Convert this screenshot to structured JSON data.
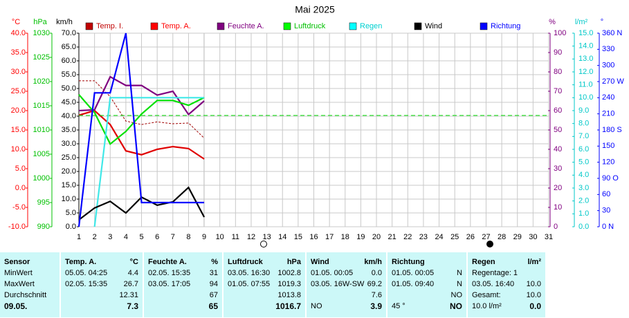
{
  "chart_data": {
    "type": "line",
    "title": "Mai 2025",
    "xlim": [
      1,
      31
    ],
    "xticks": [
      1,
      2,
      3,
      4,
      5,
      6,
      7,
      8,
      9,
      10,
      11,
      12,
      13,
      14,
      15,
      16,
      17,
      18,
      19,
      20,
      21,
      22,
      23,
      24,
      25,
      26,
      27,
      28,
      29,
      30,
      31
    ],
    "x": [
      1,
      2,
      3,
      4,
      5,
      6,
      7,
      8,
      9
    ],
    "grid": true,
    "axes": [
      {
        "label": "°C",
        "color": "#ff0000",
        "lim": [
          -10,
          40
        ],
        "ticks": [
          {
            "value": 40,
            "label": "40.0"
          },
          {
            "value": 35,
            "label": "35.0"
          },
          {
            "value": 30,
            "label": "30.0"
          },
          {
            "value": 25,
            "label": "25.0"
          },
          {
            "value": 20,
            "label": "20.0"
          },
          {
            "value": 15,
            "label": "15.0"
          },
          {
            "value": 10,
            "label": "10.0"
          },
          {
            "value": 5,
            "label": "5.0"
          },
          {
            "value": 0,
            "label": "0.0"
          },
          {
            "value": -5,
            "label": "-5.0"
          },
          {
            "value": -10,
            "label": "-10.0"
          }
        ]
      },
      {
        "label": "hPa",
        "color": "#00c000",
        "lim": [
          990,
          1030
        ],
        "ticks": [
          1030,
          1025,
          1020,
          1015,
          1010,
          1005,
          1000,
          995,
          990
        ]
      },
      {
        "label": "km/h",
        "color": "#000000",
        "lim": [
          0,
          70
        ],
        "ticks": [
          {
            "value": 70,
            "label": "70.0"
          },
          {
            "value": 65,
            "label": "65.0"
          },
          {
            "value": 60,
            "label": "60.0"
          },
          {
            "value": 55,
            "label": "55.0"
          },
          {
            "value": 50,
            "label": "50.0"
          },
          {
            "value": 45,
            "label": "45.0"
          },
          {
            "value": 40,
            "label": "40.0"
          },
          {
            "value": 35,
            "label": "35.0"
          },
          {
            "value": 30,
            "label": "30.0"
          },
          {
            "value": 25,
            "label": "25.0"
          },
          {
            "value": 20,
            "label": "20.0"
          },
          {
            "value": 15,
            "label": "15.0"
          },
          {
            "value": 10,
            "label": "10.0"
          },
          {
            "value": 5,
            "label": "5.0"
          },
          {
            "value": 0,
            "label": "0.0"
          }
        ]
      },
      {
        "label": "%",
        "color": "#800080",
        "lim": [
          0,
          100
        ],
        "ticks": [
          100,
          90,
          80,
          70,
          60,
          50,
          40,
          30,
          20,
          10,
          0
        ]
      },
      {
        "label": "l/m²",
        "color": "#00c8c8",
        "lim": [
          0,
          15
        ],
        "ticks": [
          {
            "value": 15,
            "label": "15.0"
          },
          {
            "value": 14,
            "label": "14.0"
          },
          {
            "value": 13,
            "label": "13.0"
          },
          {
            "value": 12,
            "label": "12.0"
          },
          {
            "value": 11,
            "label": "11.0"
          },
          {
            "value": 10,
            "label": "10.0"
          },
          {
            "value": 9,
            "label": "9.0"
          },
          {
            "value": 8,
            "label": "8.0"
          },
          {
            "value": 7,
            "label": "7.0"
          },
          {
            "value": 6,
            "label": "6.0"
          },
          {
            "value": 5,
            "label": "5.0"
          },
          {
            "value": 4,
            "label": "4.0"
          },
          {
            "value": 3,
            "label": "3.0"
          },
          {
            "value": 2,
            "label": "2.0"
          },
          {
            "value": 1,
            "label": "1.0"
          },
          {
            "value": 0,
            "label": "0.0"
          }
        ]
      },
      {
        "label": "°",
        "color": "#0000ff",
        "lim": [
          0,
          360
        ],
        "ticks": [
          {
            "value": 360,
            "label": "360 N"
          },
          330,
          300,
          {
            "value": 270,
            "label": "270 W"
          },
          240,
          210,
          {
            "value": 180,
            "label": "180 S"
          },
          150,
          120,
          {
            "value": 90,
            "label": "90 O"
          },
          60,
          30,
          {
            "value": 0,
            "label": "0 N"
          }
        ]
      }
    ],
    "series": [
      {
        "name": "Temp. I.",
        "color": "#a00000",
        "legend_color": "#c00000",
        "axis": 0,
        "dashed": true,
        "values": [
          27.7,
          27.7,
          23.6,
          17.3,
          16.4,
          17.1,
          16.6,
          16.8,
          12.9
        ]
      },
      {
        "name": "Temp. A.",
        "color": "#e00000",
        "legend_color": "#ff0000",
        "axis": 0,
        "values": [
          18.8,
          20,
          16.4,
          9.6,
          8.6,
          10,
          10.7,
          10.2,
          7.5
        ]
      },
      {
        "name": "Feuchte A.",
        "color": "#800080",
        "legend_color": "#800080",
        "axis": 3,
        "values": [
          60,
          60.4,
          77.5,
          73,
          73,
          68,
          70,
          58,
          65
        ]
      },
      {
        "name": "Luftdruck",
        "color": "#00e000",
        "legend_color": "#00ff00",
        "axis": 1,
        "values": [
          1017.3,
          1013.6,
          1007.1,
          1009.7,
          1013.3,
          1016.1,
          1016.1,
          1015.1,
          1016.7
        ],
        "reference": 1013
      },
      {
        "name": "Regen",
        "color": "#40e8e8",
        "legend_color": "#00ffff",
        "axis": 4,
        "values": [
          null,
          0,
          10,
          10,
          10,
          10,
          10,
          10,
          10
        ]
      },
      {
        "name": "Wind",
        "color": "#000000",
        "legend_color": "#000000",
        "axis": 2,
        "values": [
          2.5,
          6.8,
          9.2,
          5,
          10.7,
          7.8,
          9,
          14.2,
          3.5
        ]
      },
      {
        "name": "Richtung",
        "color": "#0000ff",
        "legend_color": "#0000ff",
        "axis": 5,
        "values": [
          0,
          249,
          249,
          360,
          45,
          45,
          45,
          45,
          45
        ]
      }
    ]
  },
  "table": {
    "columns": [
      {
        "header": "Sensor",
        "rows": [
          {
            "left": "MinWert"
          },
          {
            "left": "MaxWert"
          },
          {
            "left": "Durchschnitt"
          },
          {
            "left": "09.05."
          }
        ]
      },
      {
        "header": "Temp. A.",
        "unit": "°C",
        "rows": [
          {
            "left": "05.05.  04:25",
            "right": "4.4"
          },
          {
            "left": "02.05.  15:35",
            "right": "26.7"
          },
          {
            "right": "12.31"
          },
          {
            "right": "7.3"
          }
        ]
      },
      {
        "header": "Feuchte A.",
        "unit": "%",
        "rows": [
          {
            "left": "02.05.  15:35",
            "right": "31"
          },
          {
            "left": "03.05.  17:05",
            "right": "94"
          },
          {
            "right": "67"
          },
          {
            "right": "65"
          }
        ]
      },
      {
        "header": "Luftdruck",
        "unit": "hPa",
        "rows": [
          {
            "left": "03.05.  16:30",
            "right": "1002.8"
          },
          {
            "left": "01.05.  07:55",
            "right": "1019.3"
          },
          {
            "right": "1013.8"
          },
          {
            "right": "1016.7"
          }
        ]
      },
      {
        "header": "Wind",
        "unit": "km/h",
        "rows": [
          {
            "left": "01.05.  00:05",
            "right": "0.0"
          },
          {
            "left": "03.05.  16W-SW",
            "right": "69.2"
          },
          {
            "right": "7.6"
          },
          {
            "left": "NO",
            "right": "3.9"
          }
        ]
      },
      {
        "header": "Richtung",
        "rows": [
          {
            "left": "01.05.  00:05",
            "right": "N"
          },
          {
            "left": "01.05.  09:40",
            "right": "N"
          },
          {
            "right": "NO"
          },
          {
            "left": "45 °",
            "right": "NO"
          }
        ]
      },
      {
        "header": "Regen",
        "unit": "l/m²",
        "rows": [
          {
            "left": "Regentage: 1"
          },
          {
            "left": "03.05.  16:40",
            "right": "10.0"
          },
          {
            "left": "Gesamt:",
            "right": "10.0"
          },
          {
            "left": "10.0 l/m²",
            "right": "0.0"
          }
        ]
      }
    ]
  }
}
